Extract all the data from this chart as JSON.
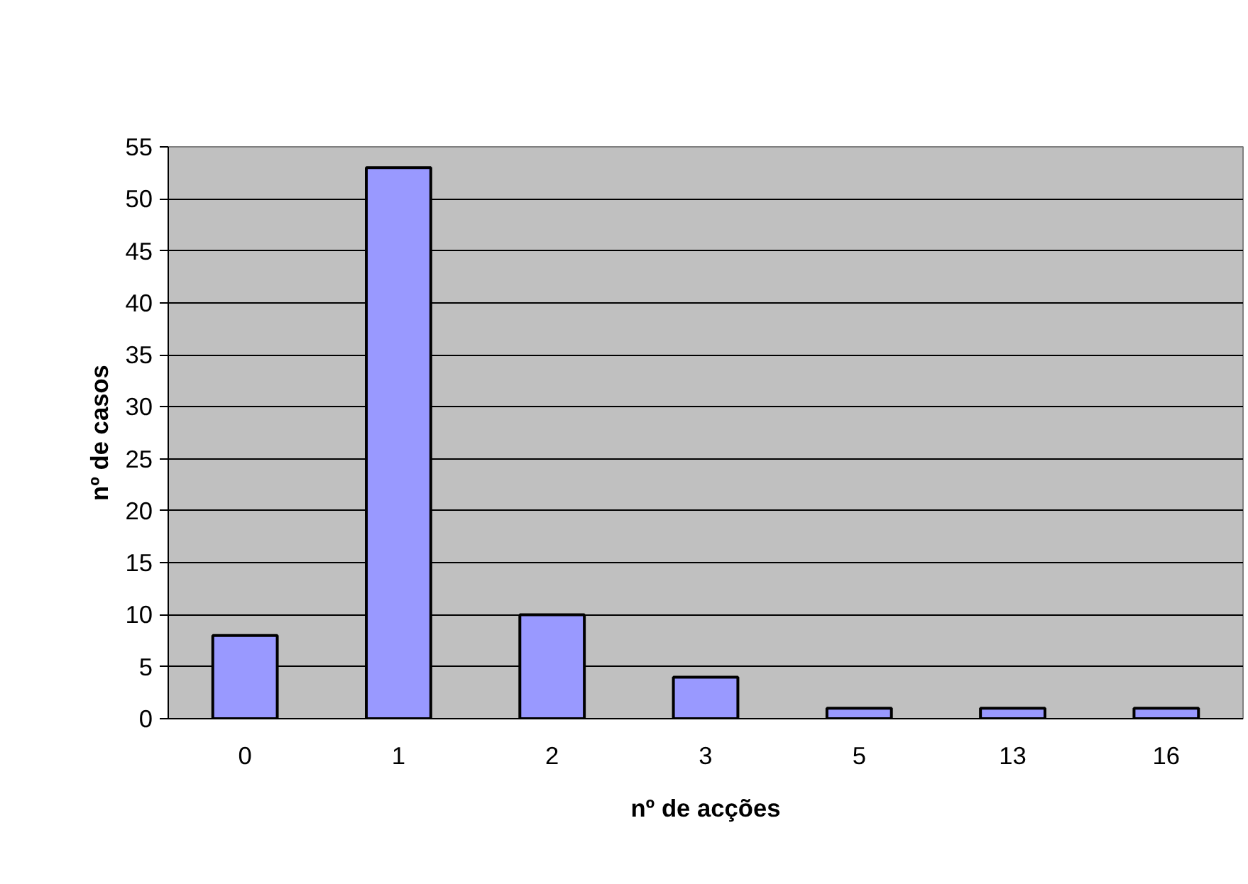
{
  "chart_data": {
    "type": "bar",
    "xlabel": "nº de acções",
    "ylabel": "nº de casos",
    "categories": [
      "0",
      "1",
      "2",
      "3",
      "5",
      "13",
      "16"
    ],
    "values": [
      8,
      53,
      10,
      4,
      1,
      1,
      1
    ],
    "color": "#9999ff",
    "ylim": [
      0,
      55
    ],
    "yticks": [
      0,
      5,
      10,
      15,
      20,
      25,
      30,
      35,
      40,
      45,
      50,
      55
    ],
    "grid": "y"
  }
}
